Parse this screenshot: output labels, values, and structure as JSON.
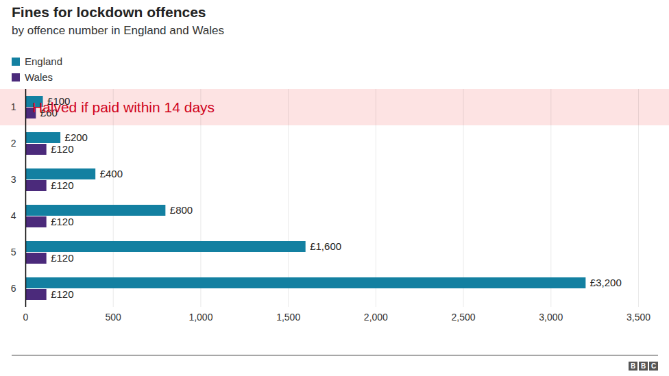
{
  "chart_data": {
    "type": "bar",
    "orientation": "horizontal",
    "title": "Fines for lockdown offences",
    "subtitle": "by offence number in England and Wales",
    "categories": [
      "1",
      "2",
      "3",
      "4",
      "5",
      "6"
    ],
    "series": [
      {
        "name": "England",
        "color": "#1380a1",
        "values": [
          100,
          200,
          400,
          800,
          1600,
          3200
        ],
        "value_labels": [
          "£100",
          "£200",
          "£400",
          "£800",
          "£1,600",
          "£3,200"
        ]
      },
      {
        "name": "Wales",
        "color": "#4b2a7b",
        "values": [
          60,
          120,
          120,
          120,
          120,
          120
        ],
        "value_labels": [
          "£60",
          "£120",
          "£120",
          "£120",
          "£120",
          "£120"
        ]
      }
    ],
    "xlim": [
      0,
      3500
    ],
    "xticks": [
      0,
      500,
      {
        "value": 1000,
        "label": "1,000"
      },
      {
        "value": 1500,
        "label": "1,500"
      },
      {
        "value": 2000,
        "label": "2,000"
      },
      {
        "value": 2500,
        "label": "2,500"
      },
      {
        "value": 3000,
        "label": "3,000"
      },
      {
        "value": 3500,
        "label": "3,500"
      }
    ],
    "grid": true,
    "legend": "top-left",
    "data_labels": true,
    "annotations": [
      {
        "category": "1",
        "text": "Halved if paid within 14 days"
      }
    ],
    "source": "BBC"
  }
}
